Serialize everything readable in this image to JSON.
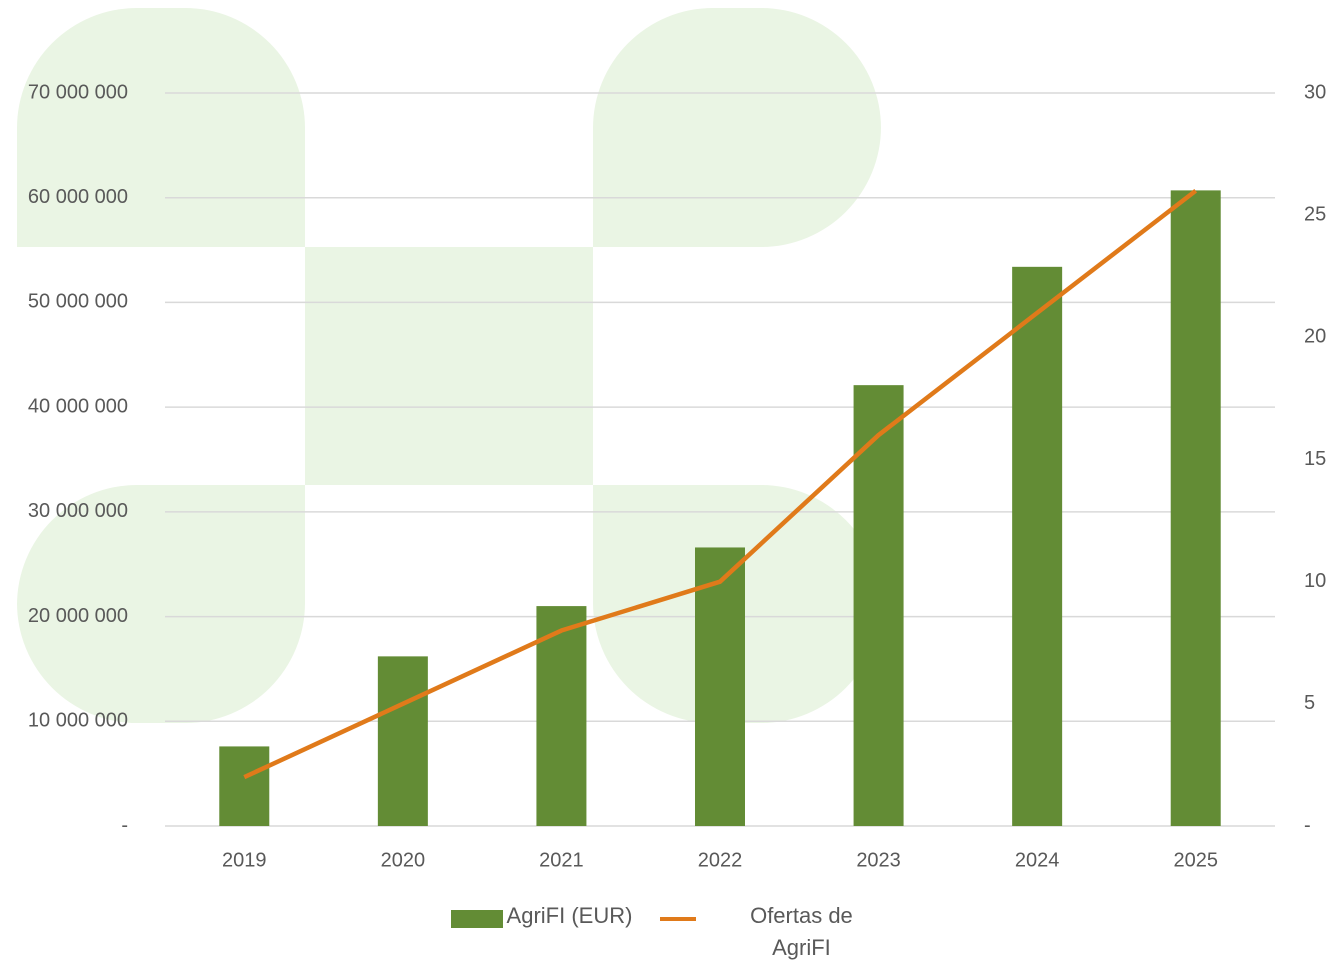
{
  "chart_data": {
    "type": "bar_line",
    "categories": [
      "2019",
      "2020",
      "2021",
      "2022",
      "2023",
      "2024",
      "2025"
    ],
    "series": [
      {
        "name": "AgriFI (EUR)",
        "color": "#638c35",
        "type": "bar",
        "values": [
          7600000,
          16200000,
          21000000,
          26600000,
          42100000,
          53400000,
          60700000
        ]
      },
      {
        "name": "Ofertas de AgriFI",
        "color": "#e07a1a",
        "type": "line",
        "axis": "y2",
        "values": [
          2,
          5,
          8,
          10,
          16,
          21,
          26
        ]
      }
    ],
    "ylim": [
      0,
      70000000
    ],
    "yticks": [
      {
        "value": 0,
        "label": "-"
      },
      {
        "value": 10000000,
        "label": "10 000 000"
      },
      {
        "value": 20000000,
        "label": "20 000 000"
      },
      {
        "value": 30000000,
        "label": "30 000 000"
      },
      {
        "value": 40000000,
        "label": "40 000 000"
      },
      {
        "value": 50000000,
        "label": "50 000 000"
      },
      {
        "value": 60000000,
        "label": "60 000 000"
      },
      {
        "value": 70000000,
        "label": "70 000 000"
      }
    ],
    "y2lim": [
      0,
      30
    ],
    "y2ticks": [
      {
        "value": 0,
        "label": "-"
      },
      5,
      10,
      15,
      20,
      25,
      30
    ],
    "grid": true,
    "legend": "bottom"
  }
}
